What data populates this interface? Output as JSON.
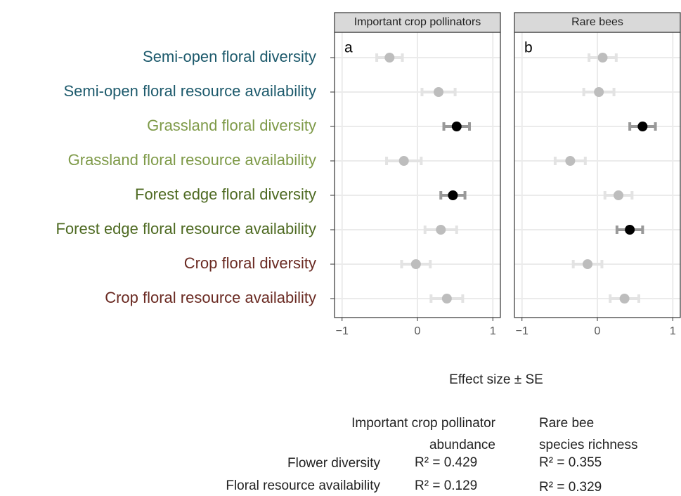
{
  "chart_data": {
    "type": "dotwhisker",
    "categories": [
      "Semi-open floral diversity",
      "Semi-open floral resource availability",
      "Grassland floral diversity",
      "Grassland floral resource availability",
      "Forest edge floral diversity",
      "Forest edge floral resource availability",
      "Crop floral diversity",
      "Crop floral resource availability"
    ],
    "category_colors": [
      "#1d5a6c",
      "#1d5a6c",
      "#7e9a48",
      "#7e9a48",
      "#4e6a22",
      "#4e6a22",
      "#6a2a22",
      "#6a2a22"
    ],
    "xlabel": "Effect size ± SE",
    "xlim": [
      -1.1,
      1.1
    ],
    "xticks": [
      {
        "value": -1,
        "label": "−1"
      },
      0,
      1
    ],
    "grid": true,
    "panels": [
      {
        "title": "Important crop pollinators",
        "label": "a",
        "values": [
          -0.37,
          0.28,
          0.52,
          -0.18,
          0.47,
          0.31,
          -0.02,
          0.39
        ],
        "errors": [
          0.17,
          0.22,
          0.17,
          0.23,
          0.16,
          0.21,
          0.19,
          0.21
        ],
        "colors": [
          "#bdbdbd",
          "#bdbdbd",
          "#000000",
          "#bdbdbd",
          "#000000",
          "#bdbdbd",
          "#bdbdbd",
          "#bdbdbd"
        ]
      },
      {
        "title": "Rare bees",
        "label": "b",
        "values": [
          0.07,
          0.02,
          0.6,
          -0.36,
          0.28,
          0.43,
          -0.13,
          0.36
        ],
        "errors": [
          0.18,
          0.2,
          0.17,
          0.2,
          0.18,
          0.17,
          0.19,
          0.19
        ],
        "colors": [
          "#bdbdbd",
          "#bdbdbd",
          "#000000",
          "#bdbdbd",
          "#bdbdbd",
          "#000000",
          "#bdbdbd",
          "#bdbdbd"
        ]
      }
    ]
  },
  "table": {
    "headers": [
      [
        "Important crop pollinator",
        "abundance"
      ],
      [
        "Rare bee",
        "species richness"
      ]
    ],
    "rows": [
      {
        "label": "Flower diversity",
        "cells": [
          "R² = 0.429",
          "R² = 0.355"
        ]
      },
      {
        "label": "Floral resource availability",
        "cells": [
          "R² = 0.129",
          "R² = 0.329"
        ]
      }
    ]
  }
}
